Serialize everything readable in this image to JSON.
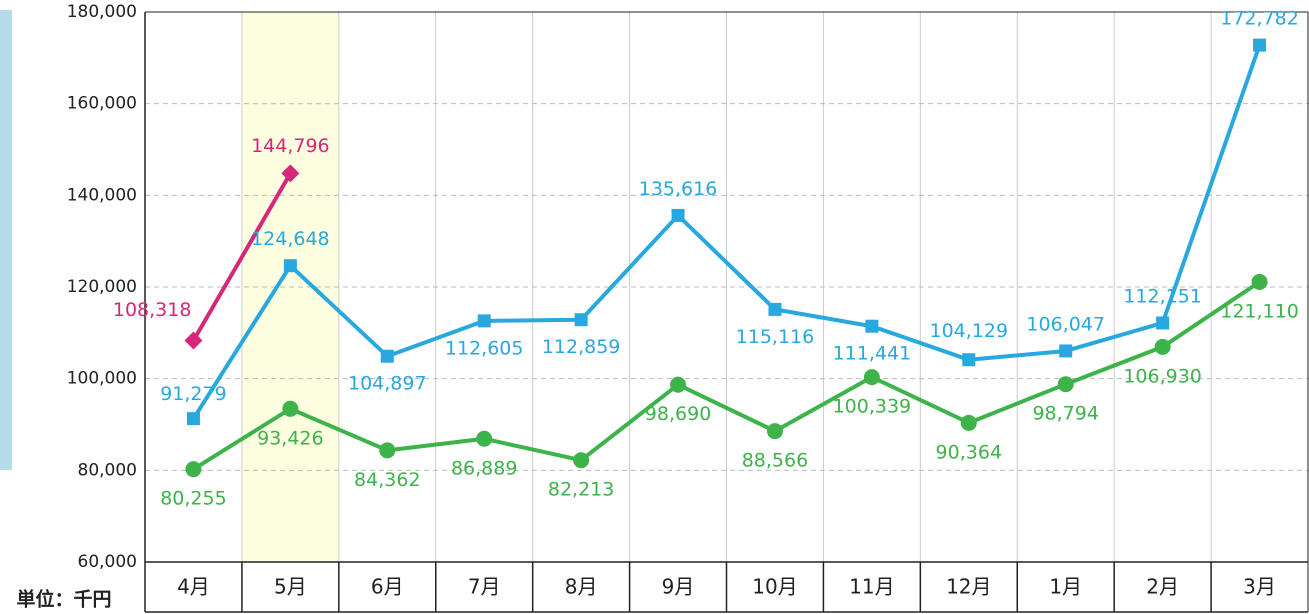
{
  "chart_data": {
    "type": "line",
    "unit_label": "単位：千円",
    "categories": [
      "4月",
      "5月",
      "6月",
      "7月",
      "8月",
      "9月",
      "10月",
      "11月",
      "12月",
      "1月",
      "2月",
      "3月"
    ],
    "highlight_index": 1,
    "highlight_color": "#fdfde0",
    "series": [
      {
        "color": "#d6287a",
        "marker": "diamond",
        "values": [
          108318,
          144796,
          null,
          null,
          null,
          null,
          null,
          null,
          null,
          null,
          null,
          null
        ],
        "value_labels": [
          "108,318",
          "144,796",
          null,
          null,
          null,
          null,
          null,
          null,
          null,
          null,
          null,
          null
        ]
      },
      {
        "color": "#29a8e0",
        "marker": "square",
        "values": [
          91279,
          124648,
          104897,
          112605,
          112859,
          135616,
          115116,
          111441,
          104129,
          106047,
          112151,
          172782
        ],
        "value_labels": [
          "91,279",
          "124,648",
          "104,897",
          "112,605",
          "112,859",
          "135,616",
          "115,116",
          "111,441",
          "104,129",
          "106,047",
          "112,151",
          "172,782"
        ]
      },
      {
        "color": "#3db34a",
        "marker": "circle",
        "values": [
          80255,
          93426,
          84362,
          86889,
          82213,
          98690,
          88566,
          100339,
          90364,
          98794,
          106930,
          121110
        ],
        "value_labels": [
          "80,255",
          "93,426",
          "84,362",
          "86,889",
          "82,213",
          "98,690",
          "88,566",
          "100,339",
          "90,364",
          "98,794",
          "106,930",
          "121,110"
        ]
      }
    ],
    "ylim": [
      60000,
      180000
    ],
    "yticks": [
      {
        "value": 60000,
        "label": "60,000"
      },
      {
        "value": 80000,
        "label": "80,000"
      },
      {
        "value": 100000,
        "label": "100,000"
      },
      {
        "value": 120000,
        "label": "120,000"
      },
      {
        "value": 140000,
        "label": "140,000"
      },
      {
        "value": 160000,
        "label": "160,000"
      },
      {
        "value": 180000,
        "label": "180,000"
      }
    ],
    "grid": true
  }
}
